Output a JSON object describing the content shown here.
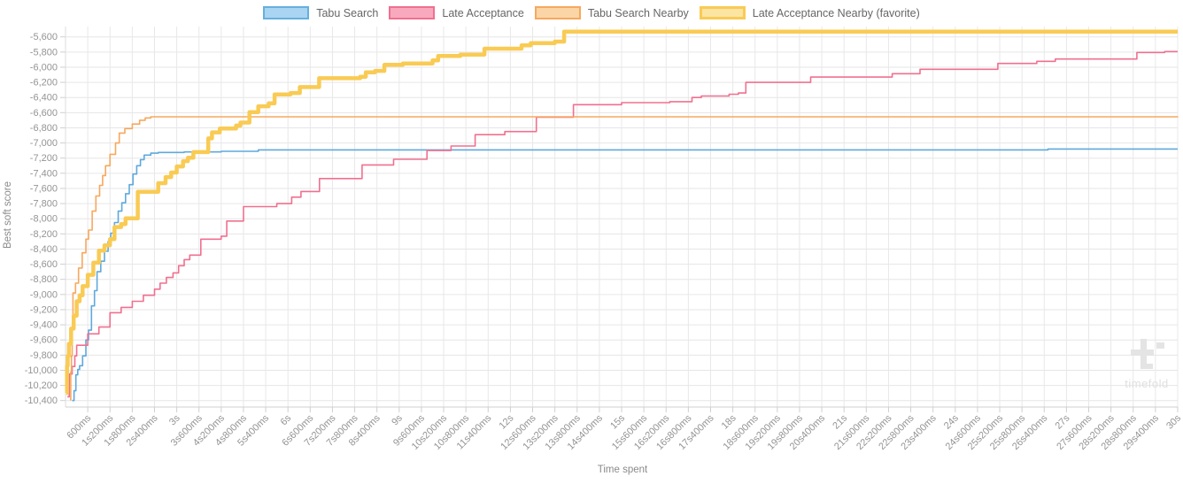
{
  "legend": {
    "items": [
      {
        "label": "Tabu Search",
        "fill": "#A9D4F2",
        "border": "#66AFDF",
        "thick": false
      },
      {
        "label": "Late Acceptance",
        "fill": "#F8A9BE",
        "border": "#F0708F",
        "thick": false
      },
      {
        "label": "Tabu Search Nearby",
        "fill": "#FBD5A6",
        "border": "#F7A85E",
        "thick": false
      },
      {
        "label": "Late Acceptance Nearby (favorite)",
        "fill": "#FCE4A3",
        "border": "#F9CB54",
        "thick": true
      }
    ]
  },
  "watermark": {
    "text": "timefold"
  },
  "chart_data": {
    "type": "line",
    "step": true,
    "title": "",
    "xlabel": "Time spent",
    "ylabel": "Best soft score",
    "xlim_seconds": [
      0,
      30
    ],
    "x_tick_interval_seconds": 0.6,
    "ylim": [
      -10400,
      -5600
    ],
    "y_tick_step": 200,
    "grid": true,
    "legend_position": "top",
    "x_tick_labels": [
      "600ms",
      "1s200ms",
      "1s800ms",
      "2s400ms",
      "3s",
      "3s600ms",
      "4s200ms",
      "4s800ms",
      "5s400ms",
      "6s",
      "6s600ms",
      "7s200ms",
      "7s800ms",
      "8s400ms",
      "9s",
      "9s600ms",
      "10s200ms",
      "10s800ms",
      "11s400ms",
      "12s",
      "12s600ms",
      "13s200ms",
      "13s800ms",
      "14s400ms",
      "15s",
      "15s600ms",
      "16s200ms",
      "16s800ms",
      "17s400ms",
      "18s",
      "18s600ms",
      "19s200ms",
      "19s800ms",
      "20s400ms",
      "21s",
      "21s600ms",
      "22s200ms",
      "22s800ms",
      "23s400ms",
      "24s",
      "24s600ms",
      "25s200ms",
      "25s800ms",
      "26s400ms",
      "27s",
      "27s600ms",
      "28s200ms",
      "28s800ms",
      "29s400ms",
      "30s"
    ],
    "y_tick_labels": [
      "-5,600",
      "-5,800",
      "-6,000",
      "-6,200",
      "-6,400",
      "-6,600",
      "-6,800",
      "-7,000",
      "-7,200",
      "-7,400",
      "-7,600",
      "-7,800",
      "-8,000",
      "-8,200",
      "-8,400",
      "-8,600",
      "-8,800",
      "-9,000",
      "-9,200",
      "-9,400",
      "-9,600",
      "-9,800",
      "-10,000",
      "-10,200",
      "-10,400"
    ],
    "series": [
      {
        "name": "Tabu Search",
        "color": "#5FA9DC",
        "width": 1.6,
        "points": [
          [
            0.18,
            -10400
          ],
          [
            0.23,
            -10270
          ],
          [
            0.28,
            -10060
          ],
          [
            0.33,
            -9990
          ],
          [
            0.38,
            -9940
          ],
          [
            0.46,
            -9810
          ],
          [
            0.55,
            -9600
          ],
          [
            0.62,
            -9470
          ],
          [
            0.7,
            -9150
          ],
          [
            0.78,
            -8950
          ],
          [
            0.85,
            -8700
          ],
          [
            0.95,
            -8560
          ],
          [
            1.05,
            -8430
          ],
          [
            1.15,
            -8300
          ],
          [
            1.22,
            -8190
          ],
          [
            1.32,
            -8050
          ],
          [
            1.42,
            -7900
          ],
          [
            1.52,
            -7790
          ],
          [
            1.62,
            -7670
          ],
          [
            1.72,
            -7550
          ],
          [
            1.82,
            -7410
          ],
          [
            1.92,
            -7300
          ],
          [
            2.02,
            -7220
          ],
          [
            2.12,
            -7160
          ],
          [
            2.3,
            -7135
          ],
          [
            2.5,
            -7125
          ],
          [
            3.2,
            -7118
          ],
          [
            4.2,
            -7110
          ],
          [
            5.2,
            -7091
          ],
          [
            26.5,
            -7080
          ],
          [
            30,
            -7080
          ]
        ]
      },
      {
        "name": "Late Acceptance",
        "color": "#F0708F",
        "width": 1.6,
        "points": [
          [
            0.05,
            -10350
          ],
          [
            0.1,
            -10050
          ],
          [
            0.18,
            -9950
          ],
          [
            0.25,
            -9810
          ],
          [
            0.3,
            -9670
          ],
          [
            0.6,
            -9520
          ],
          [
            0.9,
            -9430
          ],
          [
            1.2,
            -9240
          ],
          [
            1.5,
            -9170
          ],
          [
            1.8,
            -9090
          ],
          [
            2.1,
            -9010
          ],
          [
            2.4,
            -8930
          ],
          [
            2.55,
            -8850
          ],
          [
            2.72,
            -8775
          ],
          [
            2.9,
            -8715
          ],
          [
            3.05,
            -8620
          ],
          [
            3.2,
            -8540
          ],
          [
            3.35,
            -8480
          ],
          [
            3.65,
            -8270
          ],
          [
            4.2,
            -8230
          ],
          [
            4.35,
            -8030
          ],
          [
            4.8,
            -7840
          ],
          [
            5.7,
            -7800
          ],
          [
            6.1,
            -7715
          ],
          [
            6.35,
            -7640
          ],
          [
            6.85,
            -7470
          ],
          [
            8.0,
            -7290
          ],
          [
            8.85,
            -7215
          ],
          [
            9.75,
            -7100
          ],
          [
            10.4,
            -7040
          ],
          [
            11.05,
            -6890
          ],
          [
            11.85,
            -6850
          ],
          [
            12.7,
            -6660
          ],
          [
            13.7,
            -6495
          ],
          [
            15.0,
            -6468
          ],
          [
            16.3,
            -6455
          ],
          [
            16.9,
            -6400
          ],
          [
            17.15,
            -6380
          ],
          [
            17.9,
            -6357
          ],
          [
            18.15,
            -6340
          ],
          [
            18.35,
            -6200
          ],
          [
            20.1,
            -6130
          ],
          [
            22.3,
            -6086
          ],
          [
            23.05,
            -6028
          ],
          [
            25.15,
            -5950
          ],
          [
            26.2,
            -5922
          ],
          [
            26.7,
            -5892
          ],
          [
            28.9,
            -5806
          ],
          [
            29.65,
            -5794
          ],
          [
            30,
            -5794
          ]
        ]
      },
      {
        "name": "Tabu Search Nearby",
        "color": "#F7A85E",
        "width": 1.6,
        "points": [
          [
            0.12,
            -10390
          ],
          [
            0.14,
            -10020
          ],
          [
            0.16,
            -9810
          ],
          [
            0.18,
            -9440
          ],
          [
            0.2,
            -8980
          ],
          [
            0.27,
            -8850
          ],
          [
            0.35,
            -8650
          ],
          [
            0.45,
            -8450
          ],
          [
            0.55,
            -8270
          ],
          [
            0.62,
            -8150
          ],
          [
            0.72,
            -7900
          ],
          [
            0.82,
            -7700
          ],
          [
            0.92,
            -7560
          ],
          [
            1.0,
            -7430
          ],
          [
            1.08,
            -7300
          ],
          [
            1.2,
            -7150
          ],
          [
            1.35,
            -7000
          ],
          [
            1.45,
            -6870
          ],
          [
            1.6,
            -6810
          ],
          [
            1.8,
            -6750
          ],
          [
            2.0,
            -6700
          ],
          [
            2.15,
            -6670
          ],
          [
            2.3,
            -6655
          ],
          [
            30,
            -6650
          ]
        ]
      },
      {
        "name": "Late Acceptance Nearby (favorite)",
        "color": "#F9CB54",
        "width": 4.5,
        "points": [
          [
            0.02,
            -10300
          ],
          [
            0.04,
            -9940
          ],
          [
            0.06,
            -9810
          ],
          [
            0.09,
            -9650
          ],
          [
            0.15,
            -9450
          ],
          [
            0.22,
            -9280
          ],
          [
            0.3,
            -9090
          ],
          [
            0.38,
            -9010
          ],
          [
            0.46,
            -8890
          ],
          [
            0.6,
            -8740
          ],
          [
            0.75,
            -8580
          ],
          [
            0.9,
            -8420
          ],
          [
            1.05,
            -8350
          ],
          [
            1.2,
            -8270
          ],
          [
            1.32,
            -8110
          ],
          [
            1.5,
            -8070
          ],
          [
            1.62,
            -7995
          ],
          [
            1.95,
            -7645
          ],
          [
            2.5,
            -7530
          ],
          [
            2.7,
            -7450
          ],
          [
            2.85,
            -7390
          ],
          [
            3.0,
            -7310
          ],
          [
            3.17,
            -7240
          ],
          [
            3.3,
            -7195
          ],
          [
            3.45,
            -7120
          ],
          [
            3.85,
            -6940
          ],
          [
            3.95,
            -6860
          ],
          [
            4.16,
            -6810
          ],
          [
            4.6,
            -6770
          ],
          [
            4.72,
            -6730
          ],
          [
            4.96,
            -6593
          ],
          [
            5.2,
            -6516
          ],
          [
            5.48,
            -6477
          ],
          [
            5.64,
            -6359
          ],
          [
            6.07,
            -6340
          ],
          [
            6.32,
            -6262
          ],
          [
            6.84,
            -6145
          ],
          [
            7.95,
            -6125
          ],
          [
            8.1,
            -6067
          ],
          [
            8.35,
            -6048
          ],
          [
            8.6,
            -5969
          ],
          [
            9.1,
            -5950
          ],
          [
            9.9,
            -5911
          ],
          [
            10.05,
            -5852
          ],
          [
            10.65,
            -5833
          ],
          [
            11.3,
            -5755
          ],
          [
            12.3,
            -5712
          ],
          [
            12.55,
            -5682
          ],
          [
            13.2,
            -5662
          ],
          [
            13.45,
            -5530
          ],
          [
            30,
            -5530
          ]
        ]
      }
    ]
  }
}
